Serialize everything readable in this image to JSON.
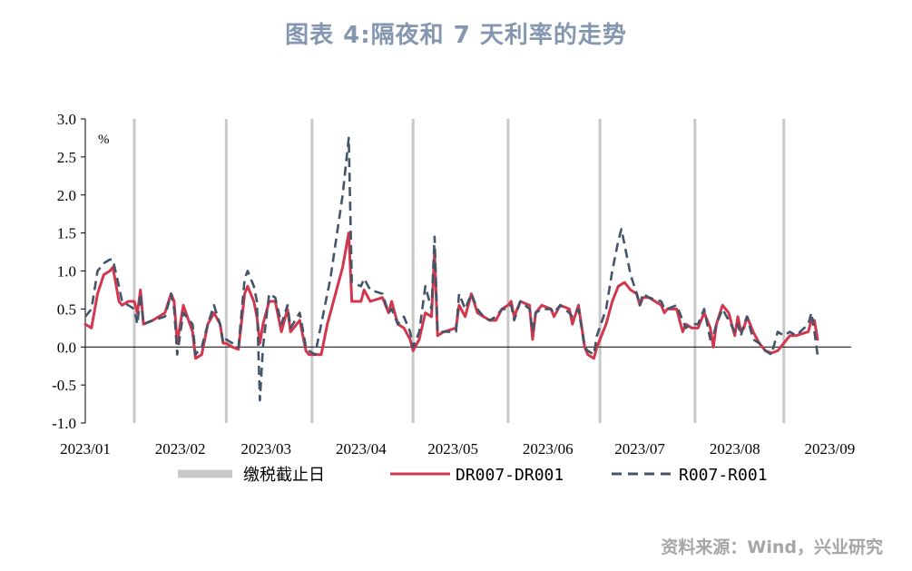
{
  "page": {
    "title": "图表 4:隔夜和 7 天利率的走势",
    "source": "资料来源：Wind，兴业研究"
  },
  "chart_data": {
    "type": "line",
    "unit_label": "%",
    "ylim": [
      -1.0,
      3.0
    ],
    "yticks": [
      -1.0,
      -0.5,
      0.0,
      0.5,
      1.0,
      1.5,
      2.0,
      2.5,
      3.0
    ],
    "ytick_labels": [
      "-1.0",
      "-0.5",
      "0.0",
      "0.5",
      "1.0",
      "1.5",
      "2.0",
      "2.5",
      "3.0"
    ],
    "x_range": [
      0,
      250
    ],
    "month_ticks": [
      {
        "label": "2023/01",
        "x": 0
      },
      {
        "label": "2023/02",
        "x": 31
      },
      {
        "label": "2023/03",
        "x": 59
      },
      {
        "label": "2023/04",
        "x": 90
      },
      {
        "label": "2023/05",
        "x": 120
      },
      {
        "label": "2023/06",
        "x": 151
      },
      {
        "label": "2023/07",
        "x": 181
      },
      {
        "label": "2023/08",
        "x": 212
      },
      {
        "label": "2023/09",
        "x": 243
      }
    ],
    "tax_deadlines": [
      16,
      46,
      74,
      107,
      138,
      168,
      199,
      228
    ],
    "series": [
      {
        "name": "DR007-DR001",
        "color": "#d1384e",
        "style": "solid",
        "points": [
          [
            0,
            0.3
          ],
          [
            2,
            0.25
          ],
          [
            4,
            0.7
          ],
          [
            6,
            0.95
          ],
          [
            8,
            1.0
          ],
          [
            9,
            1.05
          ],
          [
            11,
            0.6
          ],
          [
            12,
            0.55
          ],
          [
            14,
            0.6
          ],
          [
            16,
            0.6
          ],
          [
            17,
            0.45
          ],
          [
            18,
            0.75
          ],
          [
            19,
            0.3
          ],
          [
            22,
            0.35
          ],
          [
            26,
            0.45
          ],
          [
            28,
            0.7
          ],
          [
            29,
            0.6
          ],
          [
            30,
            0.05
          ],
          [
            32,
            0.55
          ],
          [
            35,
            0.2
          ],
          [
            36,
            -0.15
          ],
          [
            38,
            -0.1
          ],
          [
            40,
            0.3
          ],
          [
            42,
            0.45
          ],
          [
            44,
            0.3
          ],
          [
            45,
            0.05
          ],
          [
            46,
            0.05
          ],
          [
            48,
            0.0
          ],
          [
            50,
            -0.03
          ],
          [
            52,
            0.7
          ],
          [
            53,
            0.8
          ],
          [
            55,
            0.6
          ],
          [
            56,
            0.4
          ],
          [
            57,
            0.05
          ],
          [
            58,
            0.3
          ],
          [
            60,
            0.6
          ],
          [
            62,
            0.6
          ],
          [
            64,
            0.2
          ],
          [
            66,
            0.5
          ],
          [
            67,
            0.2
          ],
          [
            70,
            0.35
          ],
          [
            72,
            -0.05
          ],
          [
            73,
            -0.1
          ],
          [
            75,
            -0.1
          ],
          [
            77,
            -0.1
          ],
          [
            79,
            0.3
          ],
          [
            80,
            0.45
          ],
          [
            84,
            1.05
          ],
          [
            86,
            1.5
          ],
          [
            87,
            0.6
          ],
          [
            90,
            0.6
          ],
          [
            91,
            0.75
          ],
          [
            93,
            0.6
          ],
          [
            97,
            0.65
          ],
          [
            99,
            0.45
          ],
          [
            100,
            0.6
          ],
          [
            102,
            0.3
          ],
          [
            104,
            0.25
          ],
          [
            106,
            0.1
          ],
          [
            107,
            -0.05
          ],
          [
            109,
            0.1
          ],
          [
            111,
            0.45
          ],
          [
            113,
            0.4
          ],
          [
            114,
            1.25
          ],
          [
            115,
            0.15
          ],
          [
            117,
            0.2
          ],
          [
            121,
            0.25
          ],
          [
            122,
            0.55
          ],
          [
            124,
            0.4
          ],
          [
            126,
            0.7
          ],
          [
            128,
            0.45
          ],
          [
            130,
            0.4
          ],
          [
            132,
            0.35
          ],
          [
            134,
            0.35
          ],
          [
            136,
            0.5
          ],
          [
            138,
            0.55
          ],
          [
            139,
            0.6
          ],
          [
            140,
            0.4
          ],
          [
            142,
            0.6
          ],
          [
            145,
            0.55
          ],
          [
            146,
            0.1
          ],
          [
            147,
            0.45
          ],
          [
            149,
            0.55
          ],
          [
            152,
            0.5
          ],
          [
            153,
            0.4
          ],
          [
            155,
            0.55
          ],
          [
            158,
            0.5
          ],
          [
            159,
            0.3
          ],
          [
            161,
            0.55
          ],
          [
            163,
            0.0
          ],
          [
            164,
            -0.1
          ],
          [
            166,
            -0.15
          ],
          [
            167,
            0.0
          ],
          [
            170,
            0.3
          ],
          [
            172,
            0.6
          ],
          [
            174,
            0.8
          ],
          [
            176,
            0.85
          ],
          [
            178,
            0.75
          ],
          [
            180,
            0.7
          ],
          [
            181,
            0.55
          ],
          [
            182,
            0.65
          ],
          [
            184,
            0.65
          ],
          [
            188,
            0.55
          ],
          [
            189,
            0.45
          ],
          [
            190,
            0.5
          ],
          [
            193,
            0.5
          ],
          [
            195,
            0.2
          ],
          [
            196,
            0.3
          ],
          [
            198,
            0.25
          ],
          [
            200,
            0.25
          ],
          [
            202,
            0.45
          ],
          [
            204,
            0.25
          ],
          [
            205,
            0.0
          ],
          [
            206,
            0.3
          ],
          [
            208,
            0.55
          ],
          [
            210,
            0.45
          ],
          [
            212,
            0.15
          ],
          [
            213,
            0.4
          ],
          [
            214,
            0.2
          ],
          [
            215,
            0.25
          ],
          [
            216,
            0.4
          ],
          [
            218,
            0.2
          ],
          [
            220,
            0.05
          ],
          [
            222,
            -0.05
          ],
          [
            224,
            -0.08
          ],
          [
            226,
            -0.05
          ],
          [
            228,
            0.05
          ],
          [
            230,
            0.15
          ],
          [
            232,
            0.15
          ],
          [
            236,
            0.2
          ],
          [
            237,
            0.35
          ],
          [
            238,
            0.35
          ],
          [
            239,
            0.1
          ]
        ]
      },
      {
        "name": "R007-R001",
        "color": "#44546a",
        "style": "dashed",
        "points": [
          [
            0,
            0.4
          ],
          [
            2,
            0.5
          ],
          [
            4,
            1.0
          ],
          [
            6,
            1.1
          ],
          [
            8,
            1.15
          ],
          [
            9,
            1.15
          ],
          [
            11,
            0.8
          ],
          [
            12,
            0.6
          ],
          [
            14,
            0.55
          ],
          [
            16,
            0.5
          ],
          [
            17,
            0.3
          ],
          [
            18,
            0.7
          ],
          [
            19,
            0.3
          ],
          [
            22,
            0.35
          ],
          [
            26,
            0.4
          ],
          [
            28,
            0.7
          ],
          [
            29,
            0.5
          ],
          [
            30,
            -0.1
          ],
          [
            32,
            0.45
          ],
          [
            35,
            0.3
          ],
          [
            36,
            -0.1
          ],
          [
            38,
            0.0
          ],
          [
            40,
            0.3
          ],
          [
            42,
            0.55
          ],
          [
            44,
            0.3
          ],
          [
            45,
            0.05
          ],
          [
            46,
            0.1
          ],
          [
            48,
            0.05
          ],
          [
            50,
            0.0
          ],
          [
            52,
            0.9
          ],
          [
            53,
            1.0
          ],
          [
            55,
            0.8
          ],
          [
            56,
            0.6
          ],
          [
            57,
            -0.7
          ],
          [
            58,
            0.0
          ],
          [
            60,
            0.7
          ],
          [
            62,
            0.65
          ],
          [
            64,
            0.3
          ],
          [
            66,
            0.55
          ],
          [
            67,
            0.25
          ],
          [
            70,
            0.45
          ],
          [
            72,
            0.0
          ],
          [
            73,
            -0.05
          ],
          [
            75,
            -0.1
          ],
          [
            77,
            0.3
          ],
          [
            79,
            0.7
          ],
          [
            80,
            0.9
          ],
          [
            84,
            2.0
          ],
          [
            86,
            2.75
          ],
          [
            87,
            0.85
          ],
          [
            90,
            0.8
          ],
          [
            91,
            0.9
          ],
          [
            93,
            0.75
          ],
          [
            97,
            0.7
          ],
          [
            99,
            0.45
          ],
          [
            100,
            0.5
          ],
          [
            102,
            0.3
          ],
          [
            104,
            0.4
          ],
          [
            106,
            0.2
          ],
          [
            107,
            0.0
          ],
          [
            109,
            0.2
          ],
          [
            111,
            0.8
          ],
          [
            113,
            0.5
          ],
          [
            114,
            1.45
          ],
          [
            115,
            0.2
          ],
          [
            117,
            0.2
          ],
          [
            121,
            0.2
          ],
          [
            122,
            0.7
          ],
          [
            124,
            0.5
          ],
          [
            126,
            0.7
          ],
          [
            128,
            0.5
          ],
          [
            130,
            0.4
          ],
          [
            132,
            0.35
          ],
          [
            134,
            0.4
          ],
          [
            136,
            0.5
          ],
          [
            138,
            0.5
          ],
          [
            139,
            0.55
          ],
          [
            140,
            0.35
          ],
          [
            142,
            0.6
          ],
          [
            145,
            0.5
          ],
          [
            146,
            0.2
          ],
          [
            147,
            0.45
          ],
          [
            149,
            0.5
          ],
          [
            152,
            0.5
          ],
          [
            153,
            0.45
          ],
          [
            155,
            0.55
          ],
          [
            158,
            0.45
          ],
          [
            159,
            0.4
          ],
          [
            161,
            0.5
          ],
          [
            163,
            0.0
          ],
          [
            164,
            -0.05
          ],
          [
            166,
            -0.1
          ],
          [
            167,
            0.15
          ],
          [
            170,
            0.5
          ],
          [
            172,
            1.0
          ],
          [
            174,
            1.4
          ],
          [
            175,
            1.55
          ],
          [
            178,
            0.95
          ],
          [
            180,
            0.7
          ],
          [
            181,
            0.55
          ],
          [
            182,
            0.7
          ],
          [
            184,
            0.65
          ],
          [
            188,
            0.6
          ],
          [
            189,
            0.5
          ],
          [
            190,
            0.5
          ],
          [
            193,
            0.55
          ],
          [
            195,
            0.35
          ],
          [
            196,
            0.25
          ],
          [
            198,
            0.3
          ],
          [
            200,
            0.3
          ],
          [
            202,
            0.5
          ],
          [
            204,
            0.1
          ],
          [
            205,
            0.15
          ],
          [
            206,
            0.3
          ],
          [
            208,
            0.5
          ],
          [
            210,
            0.35
          ],
          [
            212,
            0.2
          ],
          [
            213,
            0.3
          ],
          [
            214,
            0.15
          ],
          [
            215,
            0.3
          ],
          [
            216,
            0.4
          ],
          [
            218,
            0.1
          ],
          [
            220,
            0.05
          ],
          [
            222,
            -0.05
          ],
          [
            224,
            -0.1
          ],
          [
            226,
            0.2
          ],
          [
            228,
            0.15
          ],
          [
            230,
            0.2
          ],
          [
            232,
            0.15
          ],
          [
            236,
            0.3
          ],
          [
            237,
            0.45
          ],
          [
            238,
            0.2
          ],
          [
            239,
            -0.1
          ]
        ]
      }
    ],
    "legend": [
      {
        "label": "缴税截止日",
        "kind": "bar",
        "color": "#c8c8c8"
      },
      {
        "label": "DR007-DR001",
        "kind": "solid",
        "color": "#d1384e"
      },
      {
        "label": "R007-R001",
        "kind": "dashed",
        "color": "#44546a"
      }
    ]
  }
}
